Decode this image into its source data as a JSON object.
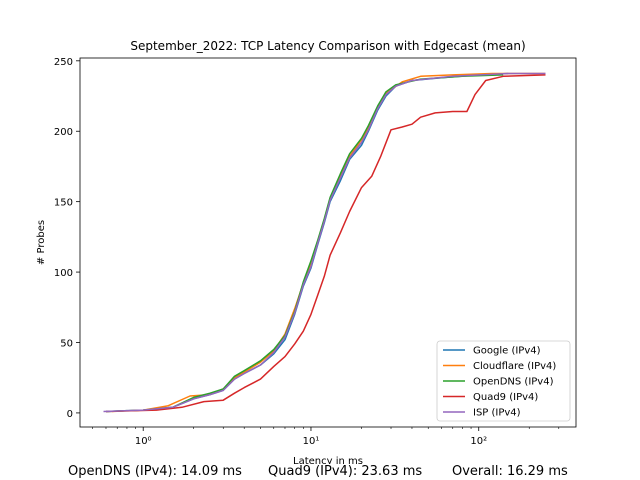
{
  "chart_data": {
    "type": "line",
    "title": "September_2022: TCP Latency Comparison with Edgecast (mean)",
    "xlabel": "Latency in ms",
    "ylabel": "# Probes",
    "xscale": "log",
    "xlim": [
      0.42,
      380
    ],
    "ylim": [
      -10,
      252
    ],
    "xticks": [
      {
        "value": 1,
        "label": "10⁰"
      },
      {
        "value": 10,
        "label": "10¹"
      },
      {
        "value": 100,
        "label": "10²"
      }
    ],
    "yticks": [
      0,
      50,
      100,
      150,
      200,
      250
    ],
    "legend_position": "lower-right",
    "series": [
      {
        "name": "Google (IPv4)",
        "color": "#1f77b4",
        "points": [
          [
            0.6,
            1
          ],
          [
            1.0,
            2
          ],
          [
            1.5,
            4
          ],
          [
            2.0,
            10
          ],
          [
            2.5,
            13
          ],
          [
            3.0,
            16
          ],
          [
            3.5,
            24
          ],
          [
            4.0,
            28
          ],
          [
            5.0,
            34
          ],
          [
            6.0,
            42
          ],
          [
            7.0,
            52
          ],
          [
            8.0,
            70
          ],
          [
            9.0,
            90
          ],
          [
            10,
            103
          ],
          [
            11,
            120
          ],
          [
            12,
            135
          ],
          [
            13,
            150
          ],
          [
            15,
            165
          ],
          [
            17,
            180
          ],
          [
            20,
            190
          ],
          [
            22,
            200
          ],
          [
            25,
            215
          ],
          [
            28,
            225
          ],
          [
            32,
            232
          ],
          [
            40,
            236
          ],
          [
            60,
            238
          ],
          [
            100,
            240
          ],
          [
            150,
            241
          ]
        ]
      },
      {
        "name": "Cloudflare (IPv4)",
        "color": "#ff7f0e",
        "points": [
          [
            0.65,
            1
          ],
          [
            1.0,
            2
          ],
          [
            1.4,
            5
          ],
          [
            1.9,
            12
          ],
          [
            2.5,
            13
          ],
          [
            3.0,
            17
          ],
          [
            3.5,
            25
          ],
          [
            4.0,
            29
          ],
          [
            5.0,
            36
          ],
          [
            6.0,
            44
          ],
          [
            7.0,
            56
          ],
          [
            8.0,
            74
          ],
          [
            9.0,
            92
          ],
          [
            10,
            106
          ],
          [
            11,
            122
          ],
          [
            12,
            137
          ],
          [
            13,
            152
          ],
          [
            15,
            168
          ],
          [
            17,
            182
          ],
          [
            20,
            194
          ],
          [
            22,
            202
          ],
          [
            25,
            217
          ],
          [
            28,
            227
          ],
          [
            35,
            235
          ],
          [
            45,
            239
          ],
          [
            70,
            240
          ],
          [
            120,
            241
          ],
          [
            250,
            241
          ]
        ]
      },
      {
        "name": "OpenDNS (IPv4)",
        "color": "#2ca02c",
        "points": [
          [
            0.6,
            1
          ],
          [
            1.0,
            2
          ],
          [
            1.5,
            4
          ],
          [
            2.0,
            11
          ],
          [
            2.5,
            14
          ],
          [
            3.0,
            17
          ],
          [
            3.5,
            26
          ],
          [
            4.0,
            30
          ],
          [
            5.0,
            37
          ],
          [
            6.0,
            45
          ],
          [
            7.0,
            55
          ],
          [
            8.0,
            72
          ],
          [
            9.0,
            93
          ],
          [
            10,
            108
          ],
          [
            11,
            123
          ],
          [
            12,
            138
          ],
          [
            13,
            153
          ],
          [
            15,
            170
          ],
          [
            17,
            184
          ],
          [
            20,
            195
          ],
          [
            22,
            204
          ],
          [
            25,
            218
          ],
          [
            28,
            228
          ],
          [
            32,
            233
          ],
          [
            45,
            237
          ],
          [
            80,
            239
          ],
          [
            140,
            240
          ]
        ]
      },
      {
        "name": "Quad9 (IPv4)",
        "color": "#d62728",
        "points": [
          [
            0.6,
            1
          ],
          [
            1.2,
            2
          ],
          [
            1.7,
            4
          ],
          [
            2.3,
            8
          ],
          [
            3.0,
            9
          ],
          [
            3.5,
            14
          ],
          [
            4.0,
            18
          ],
          [
            5.0,
            24
          ],
          [
            6.0,
            33
          ],
          [
            7.0,
            40
          ],
          [
            8.0,
            49
          ],
          [
            9.0,
            58
          ],
          [
            10,
            70
          ],
          [
            11,
            84
          ],
          [
            12,
            97
          ],
          [
            13,
            112
          ],
          [
            15,
            128
          ],
          [
            17,
            143
          ],
          [
            20,
            160
          ],
          [
            23,
            168
          ],
          [
            26,
            182
          ],
          [
            30,
            201
          ],
          [
            35,
            203
          ],
          [
            40,
            205
          ],
          [
            45,
            210
          ],
          [
            55,
            213
          ],
          [
            70,
            214
          ],
          [
            85,
            214
          ],
          [
            95,
            226
          ],
          [
            110,
            236
          ],
          [
            140,
            239
          ],
          [
            250,
            240
          ]
        ]
      },
      {
        "name": "ISP (IPv4)",
        "color": "#9467bd",
        "points": [
          [
            0.58,
            1
          ],
          [
            1.0,
            2
          ],
          [
            1.5,
            4
          ],
          [
            2.0,
            10
          ],
          [
            2.5,
            13
          ],
          [
            3.0,
            16
          ],
          [
            3.5,
            24
          ],
          [
            4.0,
            28
          ],
          [
            5.0,
            34
          ],
          [
            6.0,
            43
          ],
          [
            7.0,
            54
          ],
          [
            8.0,
            71
          ],
          [
            9.0,
            91
          ],
          [
            10,
            104
          ],
          [
            11,
            121
          ],
          [
            12,
            136
          ],
          [
            13,
            151
          ],
          [
            15,
            167
          ],
          [
            17,
            181
          ],
          [
            20,
            192
          ],
          [
            22,
            201
          ],
          [
            25,
            216
          ],
          [
            28,
            226
          ],
          [
            32,
            232
          ],
          [
            40,
            236
          ],
          [
            70,
            239
          ],
          [
            150,
            241
          ],
          [
            250,
            241
          ]
        ]
      }
    ]
  },
  "footer": {
    "opendns": "OpenDNS (IPv4): 14.09 ms",
    "quad9": "Quad9 (IPv4): 23.63 ms",
    "overall": "Overall: 16.29 ms"
  }
}
